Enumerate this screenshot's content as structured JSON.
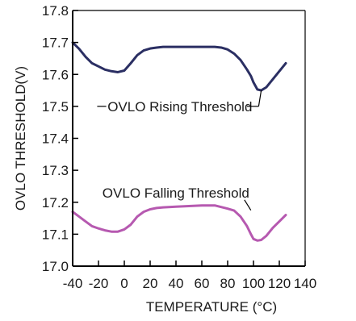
{
  "chart_data": {
    "type": "line",
    "xlabel": "TEMPERATURE (°C)",
    "ylabel": "OVLO THRESHOLD(V)",
    "xlim": [
      -40,
      140
    ],
    "ylim": [
      17.0,
      17.8
    ],
    "x_ticks": [
      -40,
      -20,
      0,
      20,
      40,
      60,
      80,
      100,
      120,
      140
    ],
    "x_tick_labels": [
      "-40",
      "-20",
      "0",
      "20",
      "40",
      "60",
      "80",
      "100",
      "120",
      "140"
    ],
    "y_ticks": [
      17.0,
      17.1,
      17.2,
      17.3,
      17.4,
      17.5,
      17.6,
      17.7,
      17.8
    ],
    "y_tick_labels": [
      "17.0",
      "17.1",
      "17.2",
      "17.3",
      "17.4",
      "17.5",
      "17.6",
      "17.7",
      "17.8"
    ],
    "grid": false,
    "series": [
      {
        "name": "OVLO Rising Threshold",
        "color": "#2b2f63",
        "x": [
          -40,
          -35,
          -30,
          -25,
          -20,
          -15,
          -10,
          -5,
          0,
          5,
          10,
          15,
          20,
          25,
          30,
          40,
          50,
          60,
          70,
          75,
          80,
          85,
          90,
          95,
          98,
          100,
          103,
          106,
          110,
          115,
          120,
          125
        ],
        "y": [
          17.7,
          17.68,
          17.655,
          17.635,
          17.625,
          17.615,
          17.61,
          17.607,
          17.612,
          17.635,
          17.66,
          17.675,
          17.681,
          17.684,
          17.686,
          17.686,
          17.686,
          17.686,
          17.686,
          17.684,
          17.678,
          17.665,
          17.645,
          17.615,
          17.595,
          17.575,
          17.553,
          17.55,
          17.56,
          17.585,
          17.61,
          17.635
        ]
      },
      {
        "name": "OVLO Falling Threshold",
        "color": "#b659b0",
        "x": [
          -40,
          -35,
          -30,
          -25,
          -20,
          -15,
          -10,
          -5,
          0,
          5,
          10,
          15,
          20,
          25,
          30,
          40,
          50,
          60,
          70,
          75,
          80,
          85,
          90,
          95,
          98,
          100,
          103,
          106,
          110,
          115,
          120,
          125
        ],
        "y": [
          17.17,
          17.155,
          17.14,
          17.125,
          17.118,
          17.112,
          17.108,
          17.108,
          17.115,
          17.13,
          17.155,
          17.17,
          17.178,
          17.182,
          17.184,
          17.186,
          17.188,
          17.19,
          17.19,
          17.185,
          17.18,
          17.174,
          17.155,
          17.125,
          17.1,
          17.085,
          17.08,
          17.082,
          17.095,
          17.12,
          17.14,
          17.16
        ]
      }
    ],
    "annotations": [
      {
        "text": "OVLO Rising Threshold",
        "series_index": 0
      },
      {
        "text": "OVLO Falling Threshold",
        "series_index": 1
      }
    ]
  }
}
